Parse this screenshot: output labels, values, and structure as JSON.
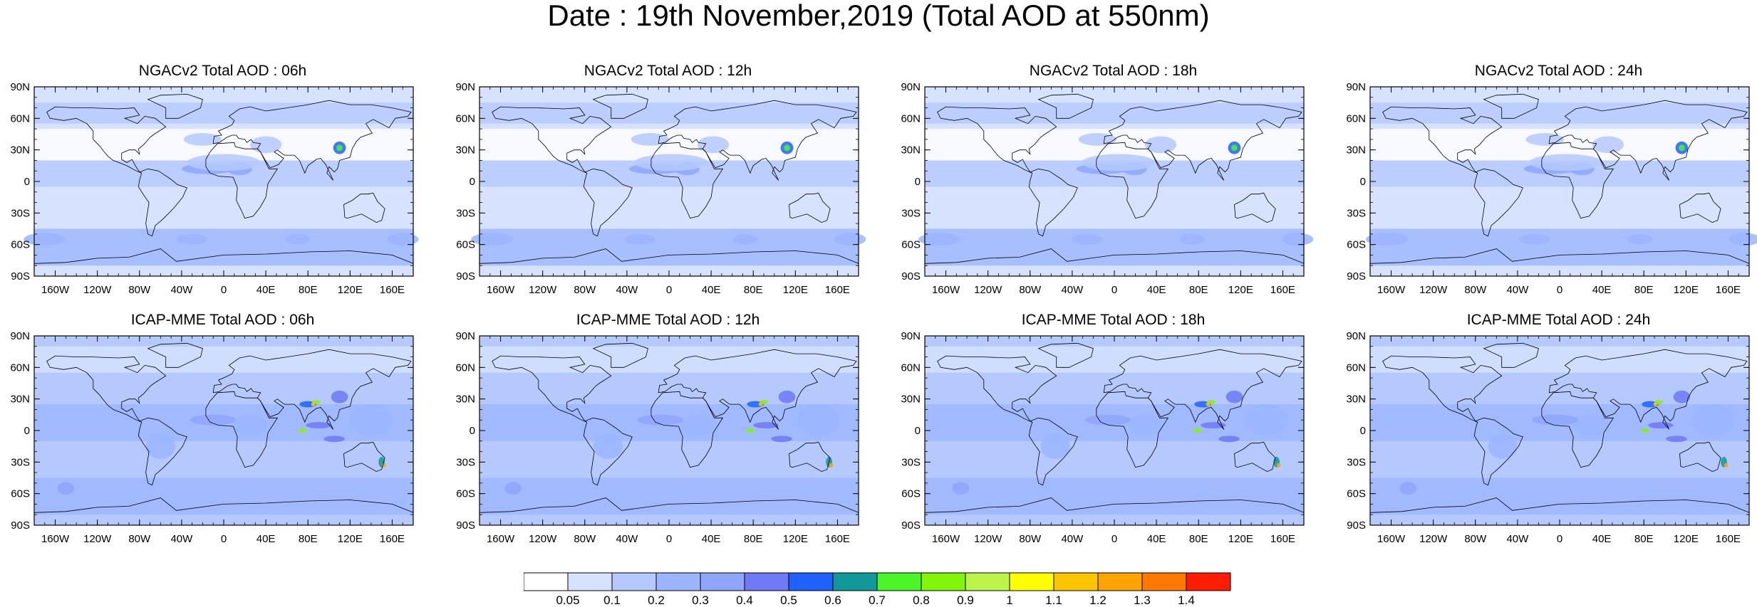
{
  "title": "Date : 19th November,2019 (Total AOD at 550nm)",
  "panels": [
    {
      "id": "ngac-06",
      "title": "NGACv2 Total AOD : 06h",
      "model": "NGACv2",
      "hour": 6
    },
    {
      "id": "ngac-12",
      "title": "NGACv2 Total AOD : 12h",
      "model": "NGACv2",
      "hour": 12
    },
    {
      "id": "ngac-18",
      "title": "NGACv2 Total AOD : 18h",
      "model": "NGACv2",
      "hour": 18
    },
    {
      "id": "ngac-24",
      "title": "NGACv2 Total AOD : 24h",
      "model": "NGACv2",
      "hour": 24
    },
    {
      "id": "icap-06",
      "title": "ICAP-MME Total AOD : 06h",
      "model": "ICAP-MME",
      "hour": 6
    },
    {
      "id": "icap-12",
      "title": "ICAP-MME Total AOD : 12h",
      "model": "ICAP-MME",
      "hour": 12
    },
    {
      "id": "icap-18",
      "title": "ICAP-MME Total AOD : 18h",
      "model": "ICAP-MME",
      "hour": 18
    },
    {
      "id": "icap-24",
      "title": "ICAP-MME Total AOD : 24h",
      "model": "ICAP-MME",
      "hour": 24
    }
  ],
  "lat_ticks": [
    "90N",
    "60N",
    "30N",
    "0",
    "30S",
    "60S",
    "90S"
  ],
  "lon_ticks": [
    "160W",
    "120W",
    "80W",
    "40W",
    "0",
    "40E",
    "80E",
    "120E",
    "160E"
  ],
  "colorbar": {
    "colors": [
      "#ffffff",
      "#d6e2ff",
      "#b5c9ff",
      "#9bb5ff",
      "#8ea5fc",
      "#6f78f5",
      "#1f61fa",
      "#129899",
      "#4cf528",
      "#83f40b",
      "#bdf44b",
      "#ffff00",
      "#ffc400",
      "#ffa300",
      "#ff7800",
      "#ff1d00"
    ],
    "labels": [
      "0.05",
      "0.1",
      "0.2",
      "0.3",
      "0.4",
      "0.5",
      "0.6",
      "0.7",
      "0.8",
      "0.9",
      "1",
      "1.1",
      "1.2",
      "1.3",
      "1.4"
    ]
  }
}
